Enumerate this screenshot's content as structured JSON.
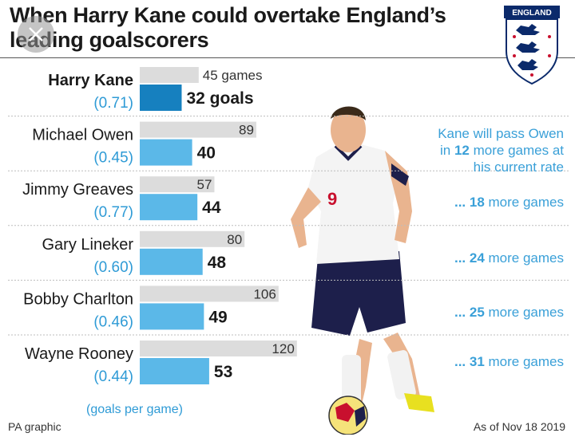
{
  "title": "When Harry Kane could overtake England’s leading goalscorers",
  "badge_text": "ENGLAND",
  "player_number": "9",
  "colors": {
    "games_bar": "#dcdcdc",
    "goals_bar": "#5bb8e8",
    "kane_goals_bar": "#1680bf",
    "rate_text": "#2f9bd6",
    "side_text": "#3aa0d8",
    "rule": "#bdbdbd"
  },
  "chart_data": {
    "type": "bar",
    "categories": [
      "Harry Kane",
      "Michael Owen",
      "Jimmy Greaves",
      "Gary Lineker",
      "Bobby Charlton",
      "Wayne Rooney"
    ],
    "series": [
      {
        "values": [
          45,
          89,
          57,
          80,
          106,
          120
        ]
      },
      {
        "values": [
          32,
          40,
          44,
          48,
          49,
          53
        ]
      }
    ],
    "rates": [
      "(0.71)",
      "(0.45)",
      "(0.77)",
      "(0.60)",
      "(0.46)",
      "(0.44)"
    ],
    "games_labels": [
      "45 games",
      "89",
      "57",
      "80",
      "106",
      "120"
    ],
    "goals_labels": [
      "32 goals",
      "40",
      "44",
      "48",
      "49",
      "53"
    ],
    "xlim": [
      0,
      120
    ]
  },
  "annotations": {
    "owen_line1": "Kane will pass Owen",
    "owen_line2_pre": "in ",
    "owen_line2_num": "12",
    "owen_line2_post": " more games at",
    "owen_line3": "his current rate",
    "more_games": [
      {
        "prefix": "... ",
        "num": "18",
        "suffix": " more games"
      },
      {
        "prefix": "... ",
        "num": "24",
        "suffix": " more games"
      },
      {
        "prefix": "... ",
        "num": "25",
        "suffix": " more games"
      },
      {
        "prefix": "... ",
        "num": "31",
        "suffix": " more games"
      }
    ],
    "rate_note": "(goals per game)"
  },
  "footer": {
    "source": "PA graphic",
    "date": "As of Nov 18 2019"
  }
}
